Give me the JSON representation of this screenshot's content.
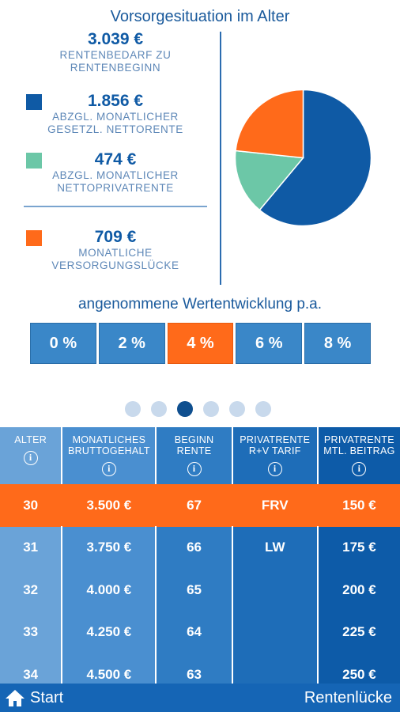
{
  "title": "Vorsorgesituation im Alter",
  "summary": {
    "bedarf": {
      "amount": "3.039 €",
      "label": "RENTENBEDARF ZU RENTENBEGINN"
    },
    "gesetzlich": {
      "amount": "1.856 €",
      "label": "ABZGL. MONATLICHER GESETZL. NETTORENTE",
      "color": "#0f5aa5"
    },
    "privat": {
      "amount": "474 €",
      "label": "ABZGL. MONATLICHER NETTOPRIVATRENTE",
      "color": "#6cc7a7"
    },
    "luecke": {
      "amount": "709 €",
      "label": "MONATLICHE VERSORGUNGSLÜCKE",
      "color": "#ff6a1a"
    }
  },
  "chart_data": {
    "type": "pie",
    "slices": [
      {
        "label": "Gesetzl. Nettorente",
        "value": 1856,
        "color": "#0f5aa5"
      },
      {
        "label": "Nettoprivatrente",
        "value": 474,
        "color": "#6cc7a7"
      },
      {
        "label": "Versorgungslücke",
        "value": 709,
        "color": "#ff6a1a"
      }
    ]
  },
  "growth": {
    "label": "angenommene Wertentwicklung p.a.",
    "options": [
      "0 %",
      "2 %",
      "4 %",
      "6 %",
      "8 %"
    ],
    "selected_index": 2
  },
  "pager": {
    "count": 6,
    "active_index": 2
  },
  "table": {
    "headers": [
      "ALTER",
      "MONATLICHES BRUTTOGEHALT",
      "BEGINN RENTE",
      "PRIVATRENTE R+V TARIF",
      "PRIVATRENTE MTL. BEITRAG"
    ],
    "info_glyph": "i",
    "highlight_row": 0,
    "rows": [
      [
        "30",
        "3.500 €",
        "67",
        "FRV",
        "150 €"
      ],
      [
        "31",
        "3.750 €",
        "66",
        "LW",
        "175 €"
      ],
      [
        "32",
        "4.000 €",
        "65",
        "",
        "200 €"
      ],
      [
        "33",
        "4.250 €",
        "64",
        "",
        "225 €"
      ],
      [
        "34",
        "4.500 €",
        "63",
        "",
        "250 €"
      ]
    ]
  },
  "footer": {
    "start_label": "Start",
    "right_label": "Rentenlücke"
  }
}
